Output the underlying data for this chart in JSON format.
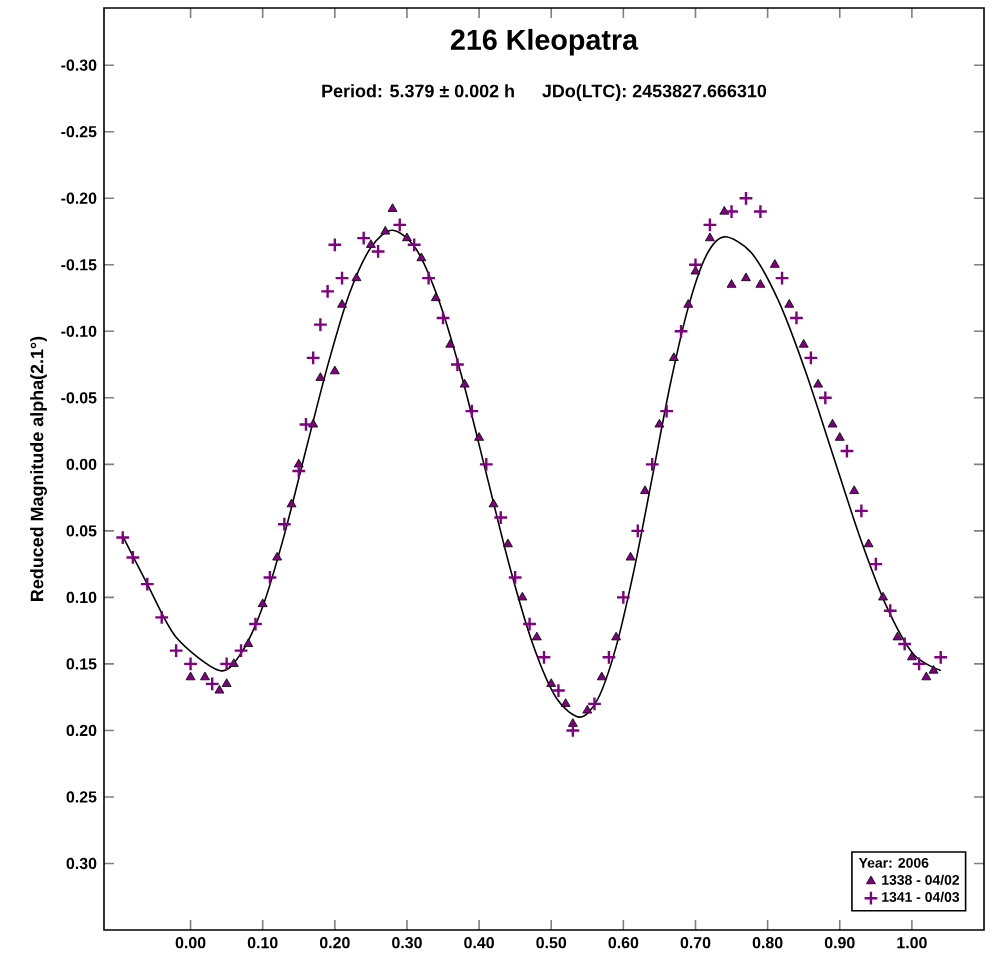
{
  "chart_data": {
    "type": "scatter",
    "title": "216 Kleopatra",
    "subtitle": "Period: 5.379 ± 0.002 h     JDo(LTC): 2453827.666310",
    "ylabel": "Reduced Magnitude alpha(2.1°)",
    "legend_title": "Year: 2006",
    "legend": "bottom right",
    "xlim": [
      -0.12,
      1.1
    ],
    "ylim": [
      0.35,
      -0.343
    ],
    "xticks": [
      {
        "value": 0,
        "label": "0.00"
      },
      {
        "value": 0.1,
        "label": "0.10"
      },
      {
        "value": 0.2,
        "label": "0.20"
      },
      {
        "value": 0.3,
        "label": "0.30"
      },
      {
        "value": 0.4,
        "label": "0.40"
      },
      {
        "value": 0.5,
        "label": "0.50"
      },
      {
        "value": 0.6,
        "label": "0.60"
      },
      {
        "value": 0.7,
        "label": "0.70"
      },
      {
        "value": 0.8,
        "label": "0.80"
      },
      {
        "value": 0.9,
        "label": "0.90"
      },
      {
        "value": 1.0,
        "label": "1.00"
      }
    ],
    "yticks": [
      {
        "value": -0.3,
        "label": "-0.30"
      },
      {
        "value": -0.25,
        "label": "-0.25"
      },
      {
        "value": -0.2,
        "label": "-0.20"
      },
      {
        "value": -0.15,
        "label": "-0.15"
      },
      {
        "value": -0.1,
        "label": "-0.10"
      },
      {
        "value": -0.05,
        "label": "-0.05"
      },
      {
        "value": 0,
        "label": "0.00"
      },
      {
        "value": 0.05,
        "label": "0.05"
      },
      {
        "value": 0.1,
        "label": "0.10"
      },
      {
        "value": 0.15,
        "label": "0.15"
      },
      {
        "value": 0.2,
        "label": "0.20"
      },
      {
        "value": 0.25,
        "label": "0.25"
      },
      {
        "value": 0.3,
        "label": "0.30"
      }
    ],
    "series": [
      {
        "type": "line",
        "color": "#000000",
        "marker": "none",
        "x": [
          -0.094,
          -0.06,
          -0.02,
          0.04,
          0.07,
          0.1,
          0.13,
          0.16,
          0.19,
          0.22,
          0.25,
          0.28,
          0.3125,
          0.345,
          0.3775,
          0.41,
          0.4425,
          0.475,
          0.5075,
          0.54,
          0.565,
          0.59,
          0.615,
          0.64,
          0.665,
          0.69,
          0.715,
          0.74,
          0.7775,
          0.815,
          0.8525,
          0.89,
          0.9275,
          0.965,
          1.0025,
          1.04
        ],
        "values": [
          0.054,
          0.09,
          0.13,
          0.155,
          0.142,
          0.107,
          0.053,
          -0.011,
          -0.074,
          -0.128,
          -0.163,
          -0.176,
          -0.162,
          -0.122,
          -0.063,
          0.007,
          0.077,
          0.136,
          0.176,
          0.19,
          0.176,
          0.137,
          0.079,
          0.01,
          -0.06,
          -0.118,
          -0.157,
          -0.171,
          -0.159,
          -0.123,
          -0.07,
          -0.008,
          0.054,
          0.107,
          0.143,
          0.155
        ]
      },
      {
        "name": "1338 - 04/02",
        "color": "#800080",
        "marker": "triangle",
        "x": [
          0.0,
          0.02,
          0.04,
          0.05,
          0.06,
          0.08,
          0.1,
          0.12,
          0.14,
          0.15,
          0.17,
          0.18,
          0.2,
          0.21,
          0.23,
          0.25,
          0.27,
          0.28,
          0.3,
          0.32,
          0.34,
          0.36,
          0.38,
          0.4,
          0.42,
          0.44,
          0.46,
          0.48,
          0.5,
          0.52,
          0.53,
          0.55,
          0.57,
          0.59,
          0.61,
          0.63,
          0.65,
          0.67,
          0.69,
          0.7,
          0.72,
          0.74,
          0.75,
          0.77,
          0.79,
          0.81,
          0.83,
          0.85,
          0.87,
          0.89,
          0.9,
          0.92,
          0.94,
          0.96,
          0.98,
          1.0,
          1.02,
          1.03
        ],
        "values": [
          0.16,
          0.16,
          0.17,
          0.165,
          0.15,
          0.135,
          0.105,
          0.07,
          0.03,
          0.0,
          -0.03,
          -0.065,
          -0.07,
          -0.12,
          -0.14,
          -0.165,
          -0.175,
          -0.192,
          -0.17,
          -0.155,
          -0.125,
          -0.09,
          -0.06,
          -0.02,
          0.03,
          0.06,
          0.1,
          0.13,
          0.165,
          0.18,
          0.195,
          0.185,
          0.16,
          0.13,
          0.07,
          0.02,
          -0.03,
          -0.08,
          -0.12,
          -0.145,
          -0.17,
          -0.19,
          -0.135,
          -0.14,
          -0.135,
          -0.15,
          -0.12,
          -0.09,
          -0.06,
          -0.03,
          -0.02,
          0.02,
          0.06,
          0.1,
          0.13,
          0.145,
          0.16,
          0.155
        ]
      },
      {
        "name": "1341 - 04/03",
        "color": "#800080",
        "marker": "cross",
        "x": [
          -0.094,
          -0.08,
          -0.06,
          -0.04,
          -0.02,
          0.0,
          0.03,
          0.05,
          0.07,
          0.09,
          0.11,
          0.13,
          0.15,
          0.16,
          0.17,
          0.18,
          0.19,
          0.2,
          0.21,
          0.24,
          0.26,
          0.29,
          0.31,
          0.33,
          0.35,
          0.37,
          0.39,
          0.41,
          0.43,
          0.45,
          0.47,
          0.49,
          0.51,
          0.53,
          0.56,
          0.58,
          0.6,
          0.62,
          0.64,
          0.66,
          0.68,
          0.7,
          0.72,
          0.75,
          0.77,
          0.79,
          0.82,
          0.84,
          0.86,
          0.88,
          0.91,
          0.93,
          0.95,
          0.97,
          0.99,
          1.01,
          1.04
        ],
        "values": [
          0.055,
          0.07,
          0.09,
          0.115,
          0.14,
          0.15,
          0.165,
          0.15,
          0.14,
          0.12,
          0.085,
          0.045,
          0.005,
          -0.03,
          -0.08,
          -0.105,
          -0.13,
          -0.165,
          -0.14,
          -0.17,
          -0.16,
          -0.18,
          -0.165,
          -0.14,
          -0.11,
          -0.075,
          -0.04,
          0.0,
          0.04,
          0.085,
          0.12,
          0.145,
          0.17,
          0.2,
          0.18,
          0.145,
          0.1,
          0.05,
          0.0,
          -0.04,
          -0.1,
          -0.15,
          -0.18,
          -0.19,
          -0.2,
          -0.19,
          -0.14,
          -0.11,
          -0.08,
          -0.05,
          -0.01,
          0.035,
          0.075,
          0.11,
          0.135,
          0.15,
          0.145
        ]
      }
    ]
  }
}
